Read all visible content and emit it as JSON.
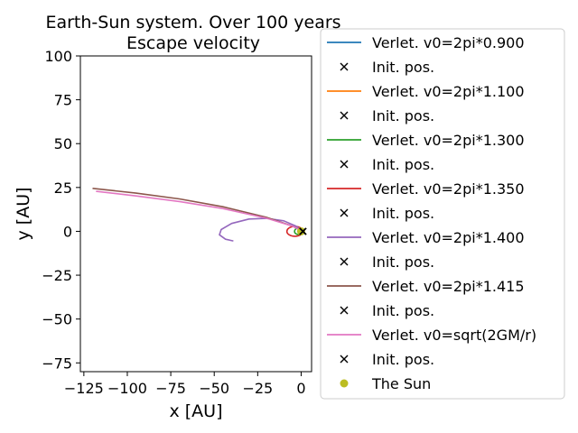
{
  "chart_data": {
    "type": "line",
    "title": "Earth-Sun system. Over 100 years\nEscape velocity",
    "xlabel": "x [AU]",
    "ylabel": "y [AU]",
    "xlim": [
      -127,
      6
    ],
    "ylim": [
      -80,
      100
    ],
    "xticks": [
      -125,
      -100,
      -75,
      -50,
      -25,
      0
    ],
    "xtick_labels": [
      "−125",
      "−100",
      "−75",
      "−50",
      "−25",
      "0"
    ],
    "yticks": [
      -75,
      -50,
      -25,
      0,
      25,
      50,
      75,
      100
    ],
    "ytick_labels": [
      "−75",
      "−50",
      "−25",
      "0",
      "25",
      "50",
      "75",
      "100"
    ],
    "grid": false,
    "legend_position": "outside-right",
    "series": [
      {
        "name": "Verlet. v0=2pi*0.900",
        "color": "#1f77b4",
        "kind": "ellipse",
        "ellipse": {
          "cx": -0.1,
          "cy": 0,
          "rx": 0.9,
          "ry": 0.86
        }
      },
      {
        "name": "Verlet. v0=2pi*1.100",
        "color": "#ff7f0e",
        "kind": "ellipse",
        "ellipse": {
          "cx": -0.25,
          "cy": 0,
          "rx": 1.25,
          "ry": 1.2
        }
      },
      {
        "name": "Verlet. v0=2pi*1.300",
        "color": "#2ca02c",
        "kind": "ellipse",
        "ellipse": {
          "cx": -1.4,
          "cy": 0,
          "rx": 2.4,
          "ry": 1.9
        }
      },
      {
        "name": "Verlet. v0=2pi*1.350",
        "color": "#d62728",
        "kind": "ellipse",
        "ellipse": {
          "cx": -3.6,
          "cy": 0,
          "rx": 4.6,
          "ry": 2.8
        }
      },
      {
        "name": "Verlet. v0=2pi*1.400",
        "color": "#9467bd",
        "kind": "points",
        "points": [
          [
            1,
            0
          ],
          [
            -3,
            3
          ],
          [
            -10,
            6
          ],
          [
            -20,
            7.4
          ],
          [
            -30,
            7
          ],
          [
            -40,
            4.5
          ],
          [
            -46,
            1
          ],
          [
            -47,
            -2
          ],
          [
            -43.5,
            -4.5
          ],
          [
            -39,
            -5.5
          ]
        ]
      },
      {
        "name": "Verlet. v0=2pi*1.415",
        "color": "#8c564b",
        "kind": "points",
        "points": [
          [
            1,
            0
          ],
          [
            -5,
            3
          ],
          [
            -20,
            8
          ],
          [
            -45,
            14
          ],
          [
            -70,
            18.5
          ],
          [
            -95,
            21.8
          ],
          [
            -120,
            24.5
          ]
        ]
      },
      {
        "name": "Verlet. v0=sqrt(2GM/r)",
        "color": "#e377c2",
        "kind": "points",
        "points": [
          [
            1,
            0
          ],
          [
            -5,
            3
          ],
          [
            -20,
            7.5
          ],
          [
            -45,
            13
          ],
          [
            -70,
            17
          ],
          [
            -95,
            20.2
          ],
          [
            -118,
            22.8
          ]
        ]
      }
    ],
    "init_positions": {
      "name": "Init. pos.",
      "color": "#000000",
      "marker": "x",
      "x": [
        1,
        1,
        1,
        1,
        1,
        1,
        1
      ],
      "y": [
        0,
        0,
        0,
        0,
        0,
        0,
        0
      ]
    },
    "sun": {
      "name": "The Sun",
      "color": "#bcbd22",
      "x": 0,
      "y": 0
    }
  }
}
